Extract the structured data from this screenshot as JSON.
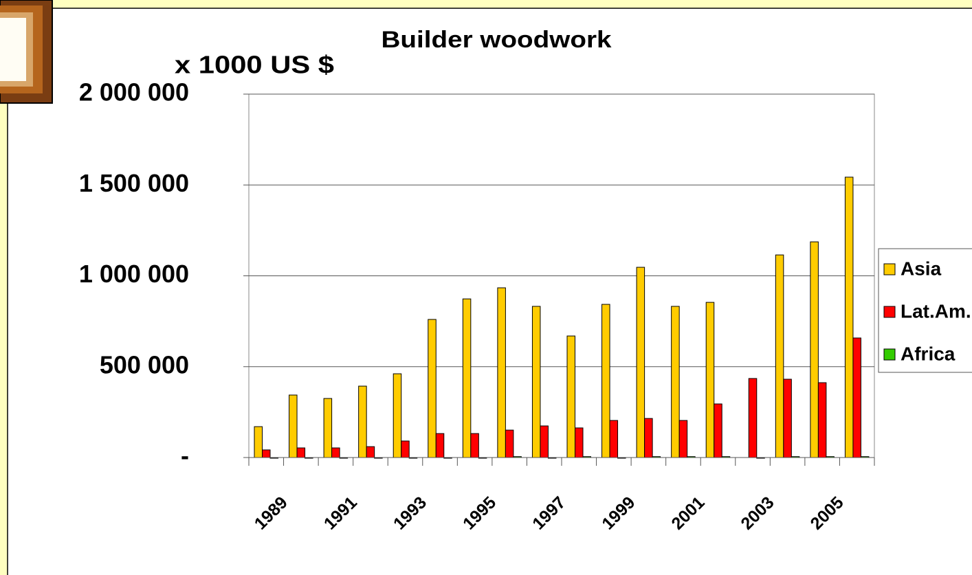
{
  "chart_data": {
    "type": "bar",
    "title": "Builder woodwork",
    "y_label": "x 1000 US $",
    "categories": [
      "1989",
      null,
      "1991",
      null,
      "1993",
      null,
      "1995",
      null,
      "1997",
      null,
      "1999",
      null,
      "2001",
      null,
      "2003",
      null,
      "2005",
      null
    ],
    "series": [
      {
        "name": "Asia",
        "color": "#ffcc00",
        "values": [
          170000,
          344000,
          325000,
          393000,
          461000,
          760000,
          873000,
          934000,
          832000,
          669000,
          843000,
          1047000,
          832000,
          854000,
          null,
          1115000,
          1187000,
          1543000
        ]
      },
      {
        "name": "Lat.Am.",
        "color": "#ff0000",
        "values": [
          42000,
          53000,
          53000,
          60000,
          91000,
          132000,
          132000,
          151000,
          174000,
          163000,
          204000,
          215000,
          204000,
          295000,
          435000,
          431000,
          412000,
          658000
        ]
      },
      {
        "name": "Africa",
        "color": "#33cc00",
        "values": [
          0,
          0,
          0,
          0,
          0,
          0,
          0,
          5000,
          0,
          5000,
          0,
          5000,
          5000,
          5000,
          0,
          5000,
          5000,
          5000
        ]
      }
    ],
    "ylim": [
      0,
      2000000
    ],
    "yticks": [
      {
        "value": 0,
        "label": "-"
      },
      {
        "value": 500000,
        "label": "500 000"
      },
      {
        "value": 1000000,
        "label": "1 000 000"
      },
      {
        "value": 1500000,
        "label": "1 500 000"
      },
      {
        "value": 2000000,
        "label": "2 000 000"
      }
    ],
    "grid": true,
    "legend": "right"
  }
}
